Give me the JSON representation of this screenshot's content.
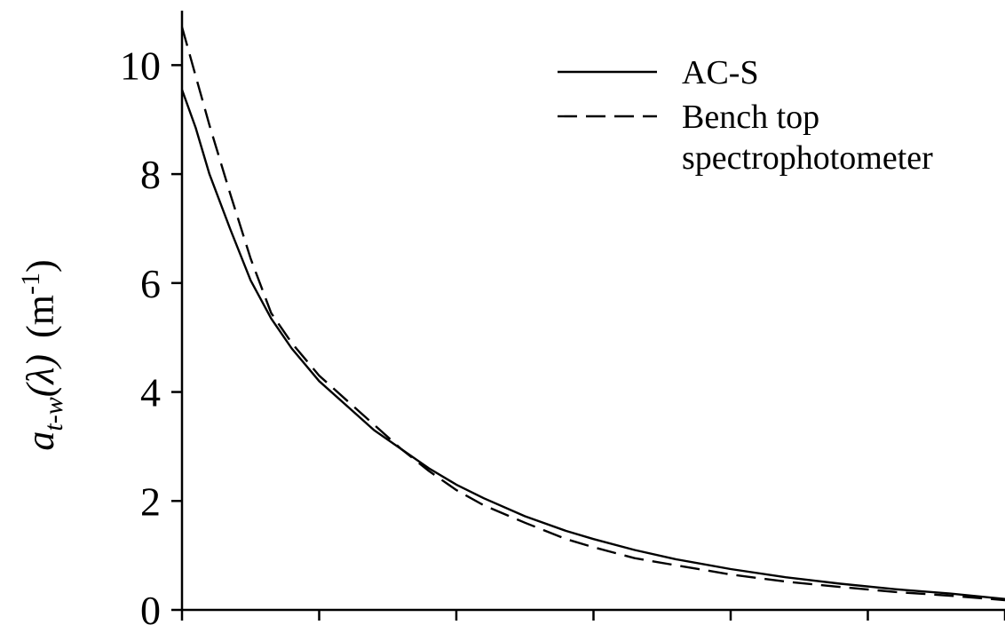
{
  "chart_data": {
    "type": "line",
    "title": "",
    "xlabel": "",
    "ylabel": {
      "a": "a",
      "sub": "t-w",
      "arg": "(λ)",
      "unit_open": "(m",
      "unit_sup": "-1",
      "unit_close": ")"
    },
    "ylim": [
      0,
      11
    ],
    "y_ticks": [
      "0",
      "2",
      "4",
      "6",
      "8",
      "10"
    ],
    "y_tick_values": [
      0,
      2,
      4,
      6,
      8,
      10
    ],
    "xlim": [
      0,
      6
    ],
    "x_tick_values": [
      0,
      1,
      2,
      3,
      4,
      5,
      6
    ],
    "grid": false,
    "legend": "top-right",
    "series": [
      {
        "name": "AC-S",
        "style": "solid",
        "color": "#000000",
        "x": [
          0.0,
          0.1,
          0.2,
          0.35,
          0.5,
          0.65,
          0.8,
          1.0,
          1.2,
          1.4,
          1.6,
          1.8,
          2.0,
          2.2,
          2.5,
          2.8,
          3.0,
          3.3,
          3.6,
          4.0,
          4.4,
          4.8,
          5.2,
          5.6,
          6.0
        ],
        "y": [
          9.55,
          8.85,
          8.0,
          7.0,
          6.05,
          5.35,
          4.8,
          4.2,
          3.75,
          3.3,
          2.95,
          2.6,
          2.3,
          2.05,
          1.72,
          1.45,
          1.3,
          1.1,
          0.93,
          0.75,
          0.6,
          0.48,
          0.38,
          0.3,
          0.2
        ]
      },
      {
        "name": "Bench top",
        "name_line2": "spectrophotometer",
        "style": "dashed",
        "color": "#000000",
        "x": [
          0.0,
          0.1,
          0.2,
          0.35,
          0.5,
          0.65,
          0.8,
          1.0,
          1.2,
          1.4,
          1.6,
          1.8,
          2.0,
          2.2,
          2.5,
          2.8,
          3.0,
          3.3,
          3.6,
          4.0,
          4.4,
          4.8,
          5.2,
          5.6,
          6.0
        ],
        "y": [
          10.7,
          9.8,
          8.9,
          7.65,
          6.45,
          5.45,
          4.9,
          4.3,
          3.85,
          3.4,
          2.95,
          2.55,
          2.2,
          1.92,
          1.6,
          1.3,
          1.15,
          0.95,
          0.82,
          0.65,
          0.52,
          0.42,
          0.33,
          0.26,
          0.18
        ]
      }
    ]
  }
}
